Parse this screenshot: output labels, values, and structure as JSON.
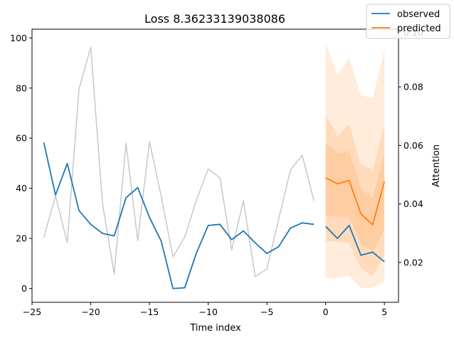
{
  "chart_data": {
    "type": "line",
    "title": "Loss 8.36233139038086",
    "xlabel": "Time index",
    "ylabel": "",
    "y2label": "Attention",
    "xlim": [
      -25,
      6.2
    ],
    "ylim": [
      -5.5,
      103.5
    ],
    "y2lim": [
      0.0064,
      0.0997
    ],
    "xticks": [
      -25,
      -20,
      -15,
      -10,
      -5,
      0,
      5
    ],
    "xtick_labels": [
      "−25",
      "−20",
      "−15",
      "−10",
      "−5",
      "0",
      "5"
    ],
    "yticks": [
      0,
      20,
      40,
      60,
      80,
      100
    ],
    "ytick_labels": [
      "0",
      "20",
      "40",
      "60",
      "80",
      "100"
    ],
    "y2ticks": [
      0.02,
      0.04,
      0.06,
      0.08
    ],
    "y2tick_labels": [
      "0.02",
      "0.04",
      "0.06",
      "0.08"
    ],
    "y2_partial_tick_label": "0.10",
    "legend": {
      "placement": "top-right",
      "entries": [
        {
          "label": "observed",
          "color": "#1f77b4"
        },
        {
          "label": "predicted",
          "color": "#ff7f0e"
        }
      ]
    },
    "attention": {
      "color": "#c8c8c8",
      "axis": "right",
      "x": [
        -24,
        -23,
        -22,
        -21,
        -20,
        -19,
        -18,
        -17,
        -16,
        -15,
        -14,
        -13,
        -12,
        -11,
        -10,
        -9,
        -8,
        -7,
        -6,
        -5,
        -4,
        -3,
        -2,
        -1
      ],
      "values": [
        0.0285,
        0.0428,
        0.0268,
        0.0792,
        0.0935,
        0.0401,
        0.0161,
        0.0608,
        0.0275,
        0.0613,
        0.0426,
        0.0219,
        0.0287,
        0.0413,
        0.052,
        0.0489,
        0.0243,
        0.0411,
        0.0152,
        0.0178,
        0.0348,
        0.0516,
        0.0567,
        0.0411
      ]
    },
    "series": [
      {
        "name": "observed",
        "color": "#1f77b4",
        "segments": [
          {
            "x": [
              -24,
              -23,
              -22,
              -21,
              -20,
              -19,
              -18,
              -17,
              -16,
              -15,
              -14,
              -13,
              -12,
              -11,
              -10,
              -9,
              -8,
              -7,
              -6,
              -5,
              -4,
              -3,
              -2,
              -1
            ],
            "y": [
              58.3,
              37.3,
              49.9,
              31.1,
              25.6,
              22.0,
              21.0,
              36.2,
              40.3,
              28.4,
              18.9,
              0.0,
              0.3,
              14.2,
              25.2,
              25.6,
              19.5,
              23.0,
              18.2,
              14.0,
              16.7,
              24.1,
              26.2,
              25.6
            ]
          },
          {
            "x": [
              0,
              1,
              2,
              3,
              4,
              5
            ],
            "y": [
              24.8,
              20.0,
              25.2,
              13.3,
              14.5,
              10.7
            ]
          }
        ]
      },
      {
        "name": "predicted",
        "color": "#ff7f0e",
        "x": [
          0,
          1,
          2,
          3,
          4,
          5
        ],
        "y": [
          44.2,
          41.8,
          43.1,
          29.8,
          25.4,
          42.7
        ]
      }
    ],
    "quantile_bands": {
      "color": "#ff7f0e",
      "x": [
        0,
        1,
        2,
        3,
        4,
        5
      ],
      "bands": [
        {
          "lower": [
            4.0,
            4.1,
            5.0,
            0.3,
            0.3,
            2.5
          ],
          "upper": [
            97.8,
            85.2,
            92.0,
            77.1,
            76.0,
            95.3
          ]
        },
        {
          "lower": [
            18.8,
            18.8,
            18.0,
            8.0,
            5.0,
            13.0
          ],
          "upper": [
            69.0,
            61.0,
            65.5,
            49.5,
            47.5,
            65.0
          ]
        },
        {
          "lower": [
            28.8,
            28.8,
            28.0,
            18.0,
            15.0,
            23.0
          ],
          "upper": [
            58.0,
            54.0,
            55.0,
            40.0,
            36.0,
            54.0
          ]
        }
      ]
    }
  }
}
